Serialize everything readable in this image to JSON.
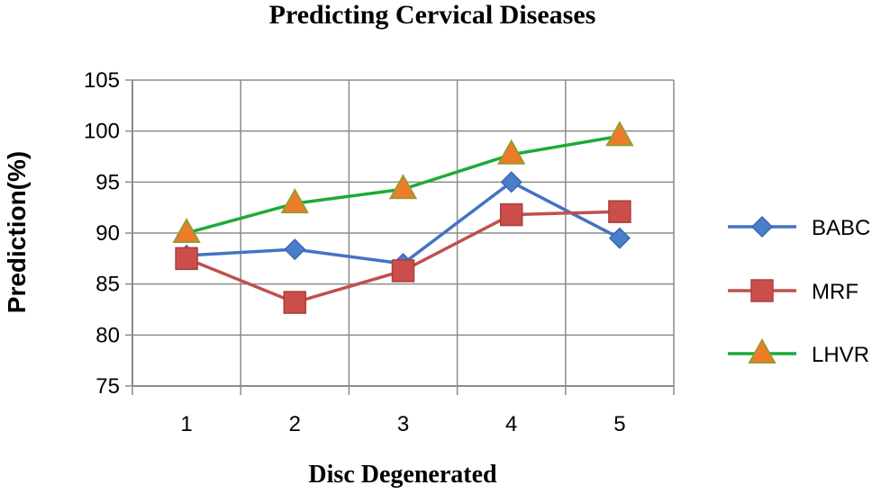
{
  "chart_data": {
    "type": "line",
    "title": "Predicting Cervical Diseases",
    "xlabel": "Disc Degenerated",
    "ylabel": "Prediction(%)",
    "categories": [
      "1",
      "2",
      "3",
      "4",
      "5"
    ],
    "ylim": [
      75,
      105
    ],
    "yticks": [
      75,
      80,
      85,
      90,
      95,
      100,
      105
    ],
    "grid": true,
    "legend_position": "right",
    "series": [
      {
        "name": "BABC",
        "color": "#4472C4",
        "marker": "diamond",
        "values": [
          87.8,
          88.4,
          87.0,
          95.0,
          89.5
        ]
      },
      {
        "name": "MRF",
        "color": "#C0504D",
        "marker": "square",
        "values": [
          87.5,
          83.2,
          86.3,
          91.8,
          92.1
        ]
      },
      {
        "name": "LHVR",
        "color": "#1DAA3A",
        "marker": "triangle",
        "values": [
          90.0,
          92.9,
          94.3,
          97.7,
          99.5
        ]
      }
    ]
  }
}
